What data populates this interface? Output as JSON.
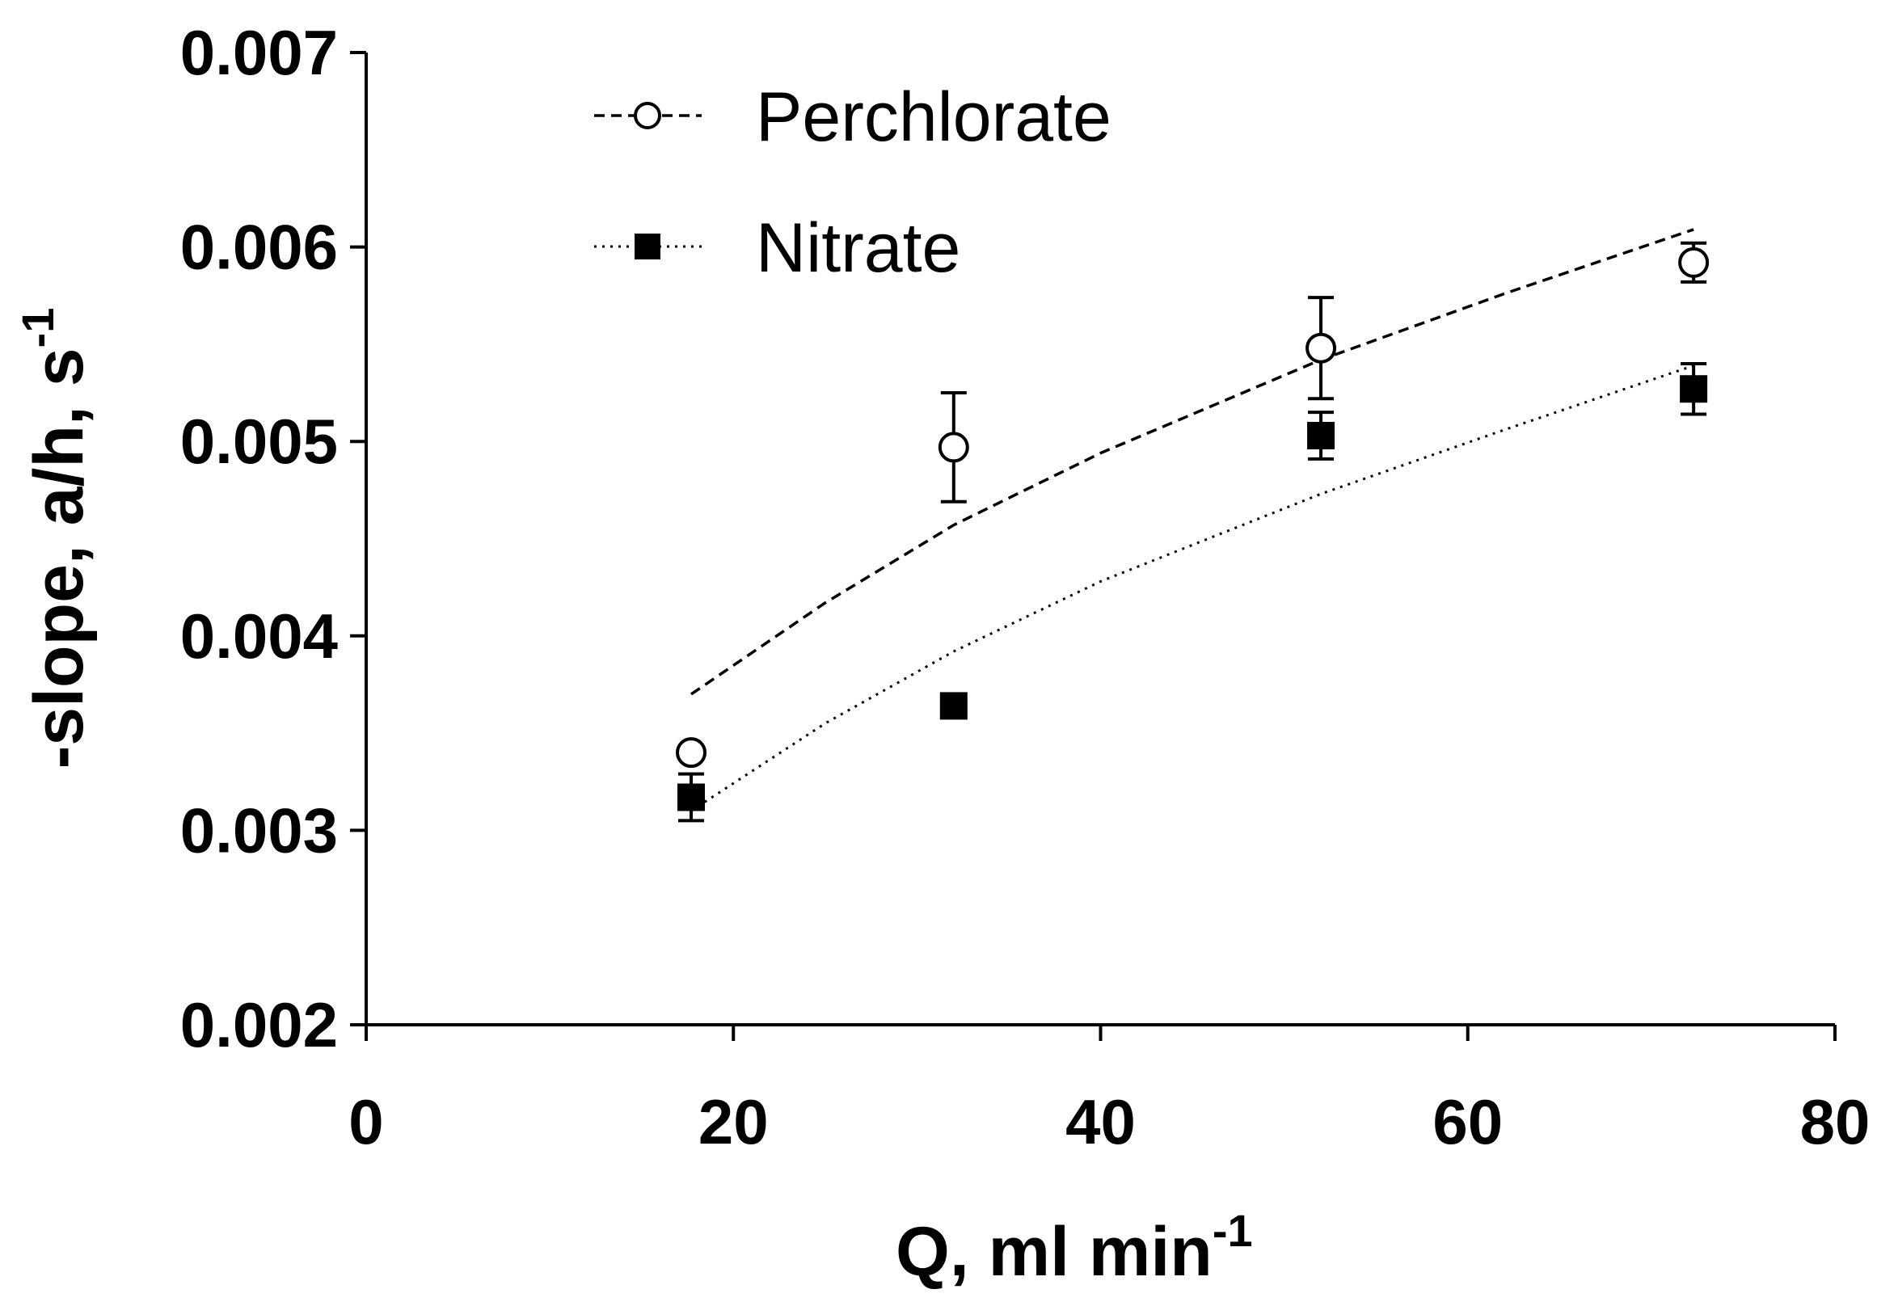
{
  "chart_data": {
    "type": "scatter",
    "title": "",
    "xlabel": "Q, ml min",
    "xlabel_superscript": "-1",
    "ylabel": "-slope, a/h, s",
    "ylabel_superscript": "-1",
    "xlim": [
      0,
      80
    ],
    "ylim": [
      0.002,
      0.007
    ],
    "xticks": [
      0,
      20,
      40,
      60,
      80
    ],
    "xtick_labels": [
      "0",
      "20",
      "40",
      "60",
      "80"
    ],
    "yticks": [
      0.002,
      0.003,
      0.004,
      0.005,
      0.006,
      0.007
    ],
    "ytick_labels": [
      "0.002",
      "0.003",
      "0.004",
      "0.005",
      "0.006",
      "0.007"
    ],
    "grid": false,
    "legend_position": "top-left",
    "series": [
      {
        "name": "Perchlorate",
        "marker": "open-circle",
        "line_style": "dashed",
        "x": [
          17.7,
          32,
          52,
          72.3
        ],
        "y": [
          0.0034,
          0.00497,
          0.00548,
          0.00592
        ],
        "err": [
          3e-05,
          0.00028,
          0.00026,
          0.0001
        ],
        "fit_x": [
          17.7,
          25,
          32,
          40,
          52,
          62,
          72.3
        ],
        "fit_y": [
          0.0037,
          0.00417,
          0.00457,
          0.00494,
          0.00542,
          0.00576,
          0.00609
        ]
      },
      {
        "name": "Nitrate",
        "marker": "filled-square",
        "line_style": "dotted",
        "x": [
          17.7,
          32,
          52,
          72.3
        ],
        "y": [
          0.00317,
          0.00364,
          0.00503,
          0.00527
        ],
        "err": [
          0.00012,
          3e-05,
          0.00012,
          0.00013
        ],
        "fit_x": [
          17.7,
          25,
          32,
          40,
          52,
          62,
          72.3
        ],
        "fit_y": [
          0.0031,
          0.00355,
          0.00392,
          0.00428,
          0.00473,
          0.00506,
          0.00539
        ]
      }
    ]
  }
}
